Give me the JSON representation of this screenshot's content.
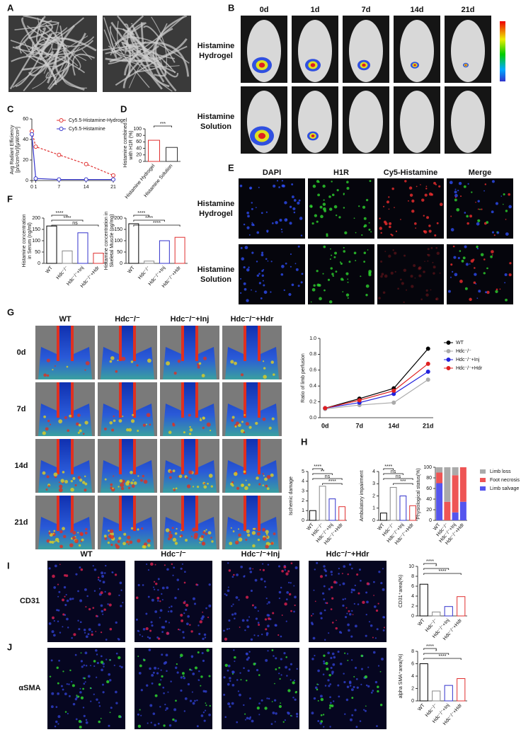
{
  "panel_labels": [
    "A",
    "B",
    "C",
    "D",
    "E",
    "F",
    "G",
    "H",
    "I",
    "J"
  ],
  "b": {
    "columns": [
      "0d",
      "1d",
      "7d",
      "14d",
      "21d"
    ],
    "rows": [
      "Histamine Hydrogel",
      "Histamine Solution"
    ]
  },
  "e": {
    "columns": [
      "DAPI",
      "H1R",
      "Cy5-Histamine",
      "Merge"
    ],
    "rows": [
      "Histamine Hydrogel",
      "Histamine Solution"
    ]
  },
  "g": {
    "columns": [
      "WT",
      "Hdc⁻/⁻",
      "Hdc⁻/⁻+Inj",
      "Hdc⁻/⁻+Hdr"
    ],
    "rows": [
      "0d",
      "7d",
      "14d",
      "21d"
    ]
  },
  "ij": {
    "columns": [
      "WT",
      "Hdc⁻/⁻",
      "Hdc⁻/⁻+Inj",
      "Hdc⁻/⁻+Hdr"
    ],
    "rows": [
      "CD31",
      "αSMA"
    ]
  },
  "chart_data": [
    {
      "type": "line",
      "x": [
        0,
        1,
        7,
        14,
        21
      ],
      "xlim": [
        0,
        21
      ],
      "xticks": [
        0,
        1,
        7,
        14,
        21
      ],
      "ylim": [
        0,
        60
      ],
      "yticks": [
        0,
        20,
        40,
        60
      ],
      "ylabel": "Avg Radiant Efficiency [p/s/cm²/sr]/[µW/cm²]",
      "legend": "upper right",
      "series": [
        {
          "name": "Cy5.5-Histamine-Hydrogel",
          "color": "#e03030",
          "values": [
            48,
            33,
            25,
            16,
            5
          ]
        },
        {
          "name": "Cy5.5-Histamine",
          "color": "#3333cc",
          "values": [
            45,
            2,
            1,
            1,
            1
          ]
        }
      ]
    },
    {
      "type": "bar",
      "categories": [
        "Histamine Hydrogel",
        "Histamine Solution"
      ],
      "values": [
        65,
        43
      ],
      "colors": [
        "#e03030",
        "#333333"
      ],
      "ylim": [
        0,
        100
      ],
      "yticks": [
        0,
        20,
        40,
        60,
        80,
        100
      ],
      "ylabel": "Histamine combined with H1R (%)",
      "annotations": [
        "***"
      ]
    },
    {
      "type": "bar",
      "categories": [
        "WT",
        "Hdc⁻/⁻",
        "Hdc⁻/⁻+Inj",
        "Hdc⁻/⁻+Hdr"
      ],
      "values": [
        165,
        55,
        135,
        45
      ],
      "colors": [
        "#000000",
        "#888888",
        "#3333cc",
        "#e03030"
      ],
      "ylim": [
        0,
        200
      ],
      "yticks": [
        0,
        50,
        100,
        150,
        200
      ],
      "ylabel": "Histamine concentration in Serum (ng/ml)",
      "annotations": [
        "****",
        "****",
        "ns"
      ]
    },
    {
      "type": "bar",
      "categories": [
        "WT",
        "Hdc⁻/⁻",
        "Hdc⁻/⁻+Inj",
        "Hdc⁻/⁻+Hdr"
      ],
      "values": [
        175,
        10,
        100,
        115
      ],
      "colors": [
        "#000000",
        "#888888",
        "#3333cc",
        "#e03030"
      ],
      "ylim": [
        0,
        200
      ],
      "yticks": [
        0,
        50,
        100,
        150,
        200
      ],
      "ylabel": "Histamine concentration in Skeletal Muscle (pg/mg)",
      "annotations": [
        "****",
        "****",
        "****"
      ]
    },
    {
      "type": "line",
      "categories": [
        "0d",
        "7d",
        "14d",
        "21d"
      ],
      "ylim": [
        0,
        1
      ],
      "yticks": [
        {
          "value": 0,
          "label": "0.0"
        },
        {
          "value": 0.2,
          "label": "0.2"
        },
        {
          "value": 0.4,
          "label": "0.4"
        },
        {
          "value": 0.6,
          "label": "0.6"
        },
        {
          "value": 0.8,
          "label": "0.8"
        },
        {
          "value": 1,
          "label": "1.0"
        }
      ],
      "ylabel": "Ratio of limb perfusion",
      "legend": "right",
      "series": [
        {
          "name": "WT",
          "color": "#000000",
          "values": [
            0.12,
            0.24,
            0.37,
            0.87
          ]
        },
        {
          "name": "Hdc⁻/⁻",
          "color": "#aaaaaa",
          "values": [
            0.11,
            0.16,
            0.19,
            0.48
          ]
        },
        {
          "name": "Hdc⁻/⁻+Inj",
          "color": "#2222dd",
          "values": [
            0.12,
            0.19,
            0.3,
            0.58
          ]
        },
        {
          "name": "Hdc⁻/⁻+Hdr",
          "color": "#e02020",
          "values": [
            0.12,
            0.22,
            0.34,
            0.68
          ]
        }
      ]
    },
    {
      "type": "bar",
      "categories": [
        "WT",
        "Hdc⁻/⁻",
        "Hdc⁻/⁻+Inj",
        "Hdc⁻/⁻+Hdr"
      ],
      "values": [
        1,
        3.5,
        2.2,
        1.4
      ],
      "colors": [
        "#000000",
        "#888888",
        "#3333cc",
        "#e03030"
      ],
      "ylim": [
        0,
        5
      ],
      "yticks": [
        0,
        1,
        2,
        3,
        4,
        5
      ],
      "ylabel": "Ischemic damage",
      "annotations": [
        "****",
        "**",
        "ns",
        "****"
      ]
    },
    {
      "type": "bar",
      "categories": [
        "WT",
        "Hdc⁻/⁻",
        "Hdc⁻/⁻+Inj",
        "Hdc⁻/⁻+Hdr"
      ],
      "values": [
        0.6,
        2.7,
        2,
        1.2
      ],
      "colors": [
        "#000000",
        "#888888",
        "#3333cc",
        "#e03030"
      ],
      "ylim": [
        0,
        4
      ],
      "yticks": [
        0,
        1,
        2,
        3,
        4
      ],
      "ylabel": "Ambulatory impairment",
      "annotations": [
        "****",
        "ns",
        "ns",
        "***"
      ]
    },
    {
      "type": "stacked_bar",
      "categories": [
        "WT",
        "Hdc⁻/⁻",
        "Hdc⁻/⁻+Inj",
        "Hdc⁻/⁻+Hdr"
      ],
      "ylim": [
        0,
        100
      ],
      "yticks": [
        0,
        20,
        40,
        60,
        80,
        100
      ],
      "ylabel": "Physiological status(%)",
      "legend": "right",
      "series": [
        {
          "name": "Limb salvage",
          "color": "#5555ee",
          "values": [
            70,
            0,
            15,
            35
          ]
        },
        {
          "name": "Foot necrosis",
          "color": "#ee5555",
          "values": [
            20,
            35,
            70,
            65
          ]
        },
        {
          "name": "Limb loss",
          "color": "#aaaaaa",
          "values": [
            10,
            65,
            15,
            0
          ]
        }
      ]
    },
    {
      "type": "bar",
      "categories": [
        "WT",
        "Hdc⁻/⁻",
        "Hdc⁻/⁻+Inj",
        "Hdc⁻/⁻+Hdr"
      ],
      "values": [
        6.4,
        0.8,
        1.9,
        3.9
      ],
      "colors": [
        "#000000",
        "#888888",
        "#3333cc",
        "#e03030"
      ],
      "ylim": [
        0,
        10
      ],
      "yticks": [
        0,
        2,
        4,
        6,
        8,
        10
      ],
      "ylabel": "CD31⁺area(%)",
      "annotations": [
        "****",
        "*",
        "****"
      ]
    },
    {
      "type": "bar",
      "categories": [
        "WT",
        "Hdc⁻/⁻",
        "Hdc⁻/⁻+Inj",
        "Hdc⁻/⁻+Hdr"
      ],
      "values": [
        6,
        1.6,
        2.5,
        3.6
      ],
      "colors": [
        "#000000",
        "#888888",
        "#3333cc",
        "#e03030"
      ],
      "ylim": [
        0,
        8
      ],
      "yticks": [
        0,
        2,
        4,
        6,
        8
      ],
      "ylabel": "alpha SMA⁺area(%)",
      "annotations": [
        "****",
        "*",
        "****"
      ]
    }
  ]
}
